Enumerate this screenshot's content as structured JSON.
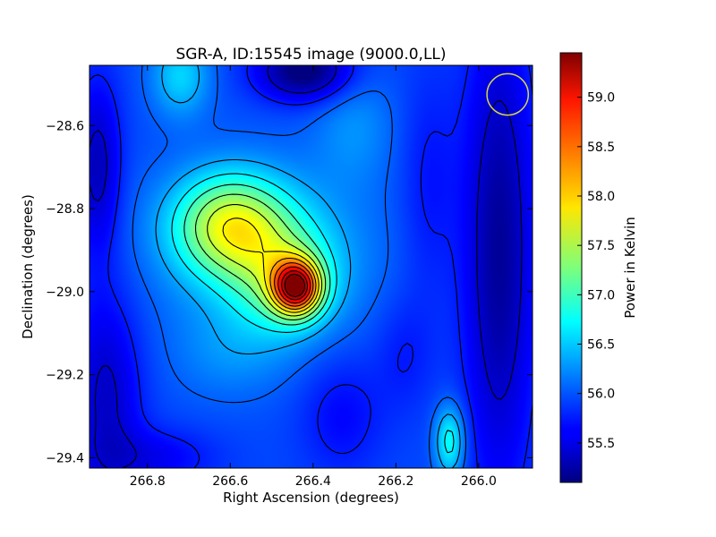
{
  "chart_data": {
    "type": "heatmap",
    "title": "SGR-A, ID:15545 image (9000.0,LL)",
    "xlabel": "Right Ascension (degrees)",
    "ylabel": "Declination (degrees)",
    "xlim": [
      266.94,
      265.87
    ],
    "ylim": [
      -29.425,
      -28.455
    ],
    "x_ticks": [
      266.8,
      266.6,
      266.4,
      266.2,
      266.0
    ],
    "x_tick_labels": [
      "266.8",
      "266.6",
      "266.4",
      "266.2",
      "266.0"
    ],
    "y_ticks": [
      -28.6,
      -28.8,
      -29.0,
      -29.2,
      -29.4
    ],
    "y_tick_labels": [
      "−28.6",
      "−28.8",
      "−29.0",
      "−29.2",
      "−29.4"
    ],
    "colorbar": {
      "label": "Power in Kelvin",
      "range": [
        55.1,
        59.45
      ],
      "ticks": [
        55.5,
        56.0,
        56.5,
        57.0,
        57.5,
        58.0,
        58.5,
        59.0
      ],
      "tick_labels": [
        "55.5",
        "56.0",
        "56.5",
        "57.0",
        "57.5",
        "58.0",
        "58.5",
        "59.0"
      ],
      "colormap": "jet"
    },
    "contour_levels": [
      55.45,
      55.75,
      56.05,
      56.35,
      56.65,
      56.95,
      57.25,
      57.55,
      57.85,
      58.15,
      58.45,
      58.75,
      59.05,
      59.3
    ],
    "field": {
      "base": 55.95,
      "features": [
        {
          "ra": 266.44,
          "dec": -28.99,
          "amp": 2.5,
          "sigma_ra": 0.04,
          "sigma_dec": 0.045
        },
        {
          "ra": 266.47,
          "dec": -28.97,
          "amp": 0.9,
          "sigma_ra": 0.085,
          "sigma_dec": 0.09
        },
        {
          "ra": 266.6,
          "dec": -28.84,
          "amp": 1.45,
          "sigma_ra": 0.095,
          "sigma_dec": 0.085
        },
        {
          "ra": 266.52,
          "dec": -28.9,
          "amp": 0.5,
          "sigma_ra": 0.18,
          "sigma_dec": 0.14
        },
        {
          "ra": 266.72,
          "dec": -28.48,
          "amp": 0.6,
          "sigma_ra": 0.05,
          "sigma_dec": 0.07
        },
        {
          "ra": 266.07,
          "dec": -29.36,
          "amp": 0.85,
          "sigma_ra": 0.025,
          "sigma_dec": 0.06
        },
        {
          "ra": 266.3,
          "dec": -28.6,
          "amp": 0.3,
          "sigma_ra": 0.07,
          "sigma_dec": 0.1
        },
        {
          "ra": 266.6,
          "dec": -29.15,
          "amp": 0.25,
          "sigma_ra": 0.1,
          "sigma_dec": 0.08
        },
        {
          "ra": 266.42,
          "dec": -28.47,
          "amp": -0.95,
          "sigma_ra": 0.08,
          "sigma_dec": 0.05
        },
        {
          "ra": 265.95,
          "dec": -28.9,
          "amp": -0.75,
          "sigma_ra": 0.06,
          "sigma_dec": 0.4
        },
        {
          "ra": 266.92,
          "dec": -28.7,
          "amp": -0.6,
          "sigma_ra": 0.04,
          "sigma_dec": 0.15
        },
        {
          "ra": 266.9,
          "dec": -29.25,
          "amp": -0.55,
          "sigma_ra": 0.06,
          "sigma_dec": 0.18
        },
        {
          "ra": 266.78,
          "dec": -29.4,
          "amp": -0.35,
          "sigma_ra": 0.1,
          "sigma_dec": 0.05
        },
        {
          "ra": 266.33,
          "dec": -29.3,
          "amp": -0.3,
          "sigma_ra": 0.07,
          "sigma_dec": 0.1
        },
        {
          "ra": 266.12,
          "dec": -28.75,
          "amp": -0.25,
          "sigma_ra": 0.05,
          "sigma_dec": 0.2
        },
        {
          "ra": 266.18,
          "dec": -29.15,
          "amp": -0.2,
          "sigma_ra": 0.05,
          "sigma_dec": 0.1
        }
      ]
    },
    "beam": {
      "ra": 265.93,
      "dec": -28.525,
      "radius_deg": 0.05,
      "color": "#d8d848"
    },
    "contour_color": "#000000"
  }
}
